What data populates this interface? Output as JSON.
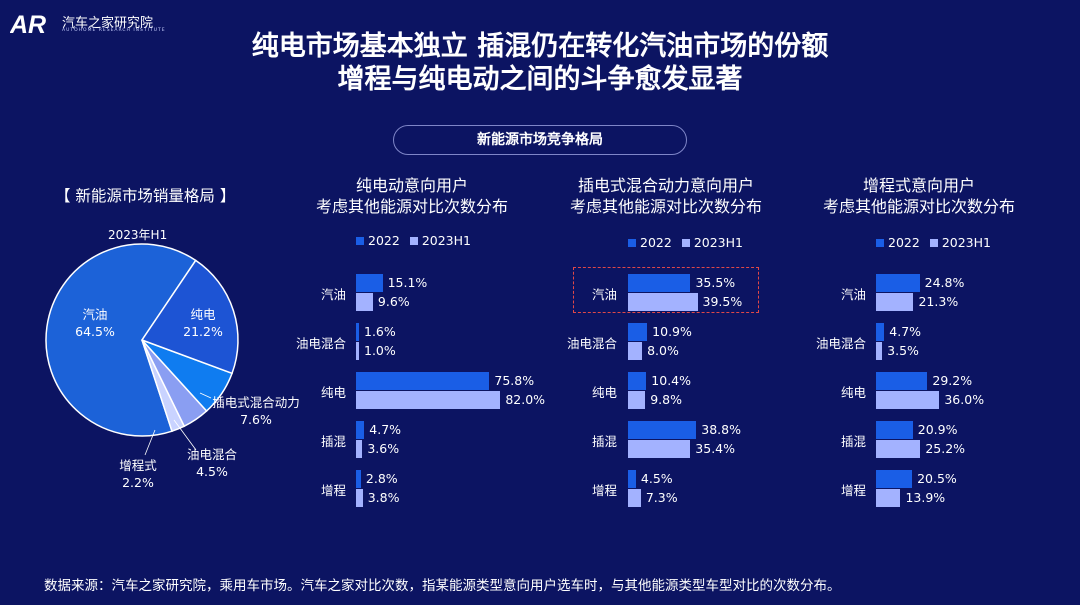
{
  "brand": {
    "title": "汽车之家研究院",
    "subtitle": "AUTOHOME RESEARCH INSTITUTE"
  },
  "header": {
    "title_line1": "纯电市场基本独立  插混仍在转化汽油市场的份额",
    "title_line2": "增程与纯电动之间的斗争愈发显著"
  },
  "section_label": "新能源市场竞争格局",
  "footer": "数据来源：汽车之家研究院，乘用车市场。汽车之家对比次数，指某能源类型意向用户选车时，与其他能源类型车型对比的次数分布。",
  "colors": {
    "bg": "#0c1462",
    "s2022": "#1a5ee6",
    "s2023": "#a3b2ff",
    "highlight": "#e04848"
  },
  "chart_data": [
    {
      "type": "pie",
      "title": "【 新能源市场销量格局 】",
      "subtitle": "2023年H1",
      "slices": [
        {
          "name": "汽油",
          "value": 64.5,
          "label": "64.5%",
          "color": "#1c62d8"
        },
        {
          "name": "纯电",
          "value": 21.2,
          "label": "21.2%",
          "color": "#1d54d4"
        },
        {
          "name": "插电式混合动力",
          "value": 7.6,
          "label": "7.6%",
          "color": "#0f7cf0"
        },
        {
          "name": "油电混合",
          "value": 4.5,
          "label": "4.5%",
          "color": "#8a9ef2"
        },
        {
          "name": "增程式",
          "value": 2.2,
          "label": "2.2%",
          "color": "#c9d3ff"
        }
      ]
    },
    {
      "type": "bar",
      "orientation": "horizontal",
      "title_line1": "纯电动意向用户",
      "title_line2": "考虑其他能源对比次数分布",
      "categories": [
        "汽油",
        "油电混合",
        "纯电",
        "插混",
        "增程"
      ],
      "series": [
        {
          "name": "2022",
          "values": [
            15.1,
            1.6,
            75.8,
            4.7,
            2.8
          ],
          "labels": [
            "15.1%",
            "1.6%",
            "75.8%",
            "4.7%",
            "2.8%"
          ]
        },
        {
          "name": "2023H1",
          "values": [
            9.6,
            1.0,
            82.0,
            3.6,
            3.8
          ],
          "labels": [
            "9.6%",
            "1.0%",
            "82.0%",
            "3.6%",
            "3.8%"
          ]
        }
      ],
      "xlim": [
        0,
        100
      ]
    },
    {
      "type": "bar",
      "orientation": "horizontal",
      "title_line1": "插电式混合动力意向用户",
      "title_line2": "考虑其他能源对比次数分布",
      "categories": [
        "汽油",
        "油电混合",
        "纯电",
        "插混",
        "增程"
      ],
      "series": [
        {
          "name": "2022",
          "values": [
            35.5,
            10.9,
            10.4,
            38.8,
            4.5
          ],
          "labels": [
            "35.5%",
            "10.9%",
            "10.4%",
            "38.8%",
            "4.5%"
          ]
        },
        {
          "name": "2023H1",
          "values": [
            39.5,
            8.0,
            9.8,
            35.4,
            7.3
          ],
          "labels": [
            "39.5%",
            "8.0%",
            "9.8%",
            "35.4%",
            "7.3%"
          ]
        }
      ],
      "highlight_category": "汽油",
      "xlim": [
        0,
        100
      ]
    },
    {
      "type": "bar",
      "orientation": "horizontal",
      "title_line1": "增程式意向用户",
      "title_line2": "考虑其他能源对比次数分布",
      "categories": [
        "汽油",
        "油电混合",
        "纯电",
        "插混",
        "增程"
      ],
      "series": [
        {
          "name": "2022",
          "values": [
            24.8,
            4.7,
            29.2,
            20.9,
            20.5
          ],
          "labels": [
            "24.8%",
            "4.7%",
            "29.2%",
            "20.9%",
            "20.5%"
          ]
        },
        {
          "name": "2023H1",
          "values": [
            21.3,
            3.5,
            36.0,
            25.2,
            13.9
          ],
          "labels": [
            "21.3%",
            "3.5%",
            "36.0%",
            "25.2%",
            "13.9%"
          ]
        }
      ],
      "xlim": [
        0,
        100
      ]
    }
  ]
}
